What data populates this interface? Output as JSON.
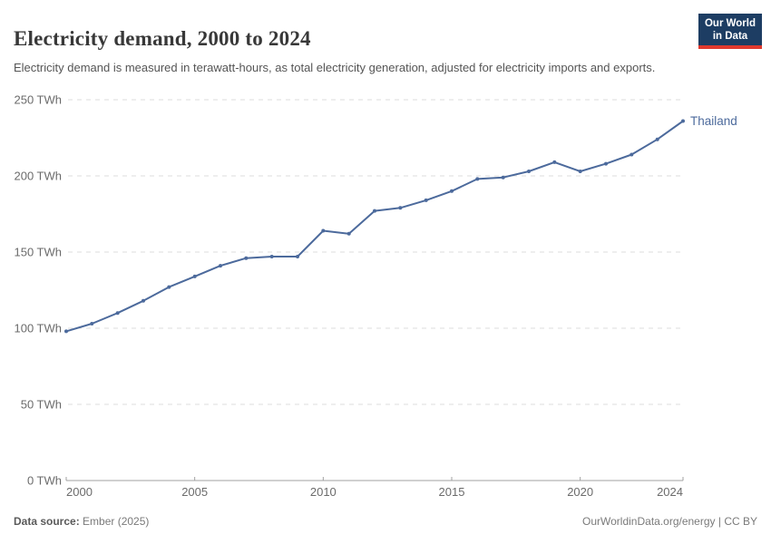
{
  "header": {
    "title": "Electricity demand, 2000 to 2024",
    "subtitle": "Electricity demand is measured in terawatt-hours, as total electricity generation, adjusted for electricity imports and exports.",
    "logo": {
      "line1": "Our World",
      "line2": "in Data"
    }
  },
  "chart_data": {
    "type": "line",
    "title": "Electricity demand, 2000 to 2024",
    "unit": "TWh",
    "x": [
      2000,
      2001,
      2002,
      2003,
      2004,
      2005,
      2006,
      2007,
      2008,
      2009,
      2010,
      2011,
      2012,
      2013,
      2014,
      2015,
      2016,
      2017,
      2018,
      2019,
      2020,
      2021,
      2022,
      2023,
      2024
    ],
    "series": [
      {
        "name": "Thailand",
        "color": "#4C6A9C",
        "values": [
          98,
          103,
          110,
          118,
          127,
          134,
          141,
          146,
          147,
          147,
          164,
          162,
          177,
          179,
          184,
          190,
          198,
          199,
          203,
          209,
          203,
          208,
          214,
          224,
          236
        ]
      }
    ],
    "xlabel": "",
    "ylabel": "",
    "xlim": [
      2000,
      2024
    ],
    "ylim": [
      0,
      250
    ],
    "x_ticks": [
      2000,
      2005,
      2010,
      2015,
      2020,
      2024
    ],
    "y_ticks": [
      0,
      50,
      100,
      150,
      200,
      250
    ],
    "y_tick_suffix": " TWh",
    "grid": "horizontal-dashed",
    "legend": "line-end-label"
  },
  "footer": {
    "source_label": "Data source:",
    "source_value": " Ember (2025)",
    "credit": "OurWorldinData.org/energy | CC BY"
  },
  "colors": {
    "series": "#4C6A9C",
    "logo_bg": "#1d3d63",
    "logo_red": "#e0392e",
    "grid": "#dcdcdc",
    "axis": "#a1a1a1",
    "tick_text": "#6b6b6b"
  }
}
